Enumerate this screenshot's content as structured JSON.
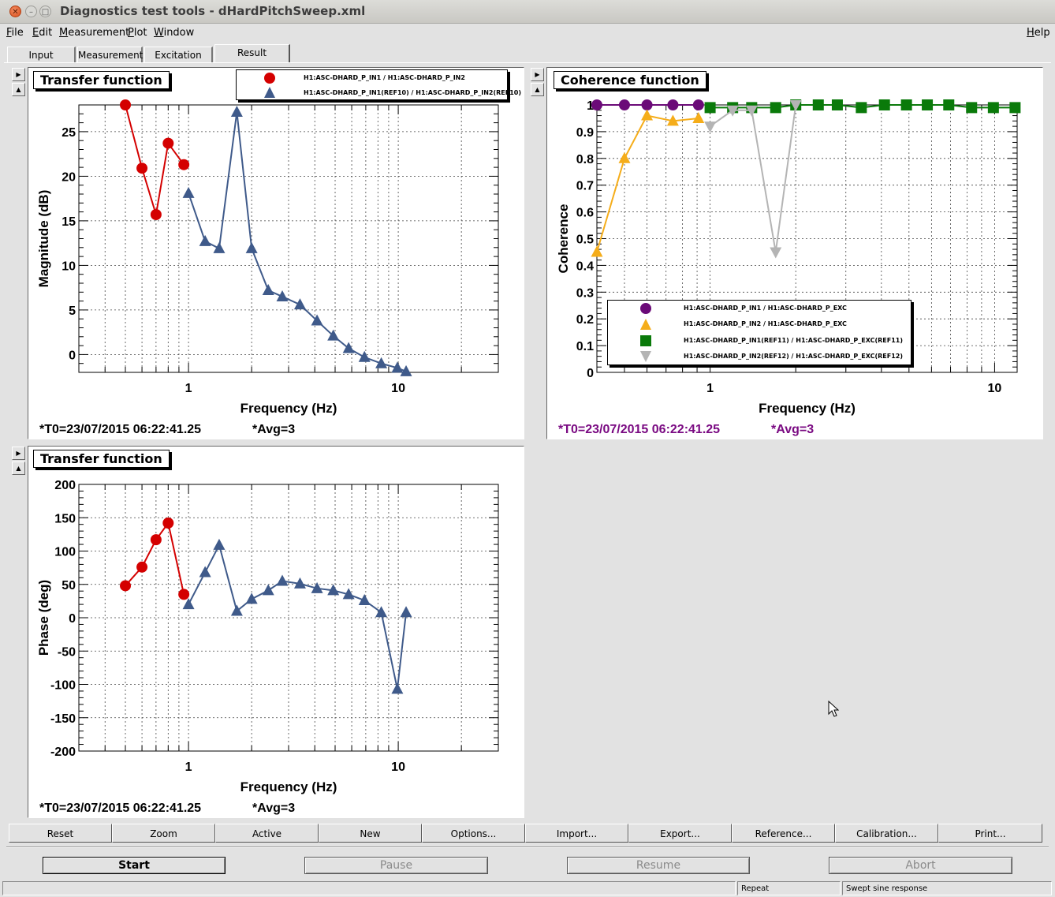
{
  "window": {
    "title": "Diagnostics test tools - dHardPitchSweep.xml",
    "controls": [
      "close-icon",
      "minimize-icon",
      "maximize-icon"
    ]
  },
  "menubar": {
    "items": [
      {
        "label": "File",
        "u": "F",
        "rest": "ile"
      },
      {
        "label": "Edit",
        "u": "E",
        "rest": "dit"
      },
      {
        "label": "Measurement",
        "u": "M",
        "rest": "easurement"
      },
      {
        "label": "Plot",
        "u": "P",
        "rest": "lot"
      },
      {
        "label": "Window",
        "u": "W",
        "rest": "indow"
      }
    ],
    "help": {
      "u": "H",
      "rest": "elp"
    }
  },
  "tabs": [
    {
      "label": "Input"
    },
    {
      "label": "Measurement"
    },
    {
      "label": "Excitation"
    },
    {
      "label": "Result",
      "active": true
    }
  ],
  "pads": {
    "tf_mag": {
      "title": "Transfer function",
      "legend": [
        {
          "label": "H1:ASC-DHARD_P_IN1 / H1:ASC-DHARD_P_IN2",
          "marker": "circle",
          "color": "#d40000"
        },
        {
          "label": "H1:ASC-DHARD_P_IN1(REF10) / H1:ASC-DHARD_P_IN2(REF10)",
          "marker": "triangle-up",
          "color": "#3f5a8a"
        }
      ],
      "t0": "*T0=23/07/2015 06:22:41.25",
      "avg": "*Avg=3",
      "info_color": "#d40000"
    },
    "coherence": {
      "title": "Coherence function",
      "legend": [
        {
          "label": "H1:ASC-DHARD_P_IN1 / H1:ASC-DHARD_P_EXC",
          "marker": "circle",
          "color": "#6b0a78"
        },
        {
          "label": "H1:ASC-DHARD_P_IN2 / H1:ASC-DHARD_P_EXC",
          "marker": "triangle-up",
          "color": "#f5ad1a"
        },
        {
          "label": "H1:ASC-DHARD_P_IN1(REF11) / H1:ASC-DHARD_P_EXC(REF11)",
          "marker": "square",
          "color": "#0a7a0a"
        },
        {
          "label": "H1:ASC-DHARD_P_IN2(REF12) / H1:ASC-DHARD_P_EXC(REF12)",
          "marker": "triangle-down",
          "color": "#b4b4b4"
        }
      ],
      "t0": "*T0=23/07/2015 06:22:41.25",
      "avg": "*Avg=3",
      "info_color": "#7a0a82"
    },
    "tf_phase": {
      "title": "Transfer function",
      "t0": "*T0=23/07/2015 06:22:41.25",
      "avg": "*Avg=3",
      "info_color": "#d40000"
    }
  },
  "chart_data": [
    {
      "type": "line",
      "title": "Transfer function",
      "xlabel": "Frequency (Hz)",
      "ylabel": "Magnitude (dB)",
      "xscale": "log",
      "xlim": [
        0.3,
        30
      ],
      "ylim": [
        -2,
        28
      ],
      "grid": true,
      "legend_position": "top-center",
      "x_ticks": [
        {
          "v": 1,
          "label": "1"
        },
        {
          "v": 10,
          "label": "10"
        }
      ],
      "y_ticks": [
        {
          "v": 0,
          "label": "0"
        },
        {
          "v": 5,
          "label": "5"
        },
        {
          "v": 10,
          "label": "10"
        },
        {
          "v": 15,
          "label": "15"
        },
        {
          "v": 20,
          "label": "20"
        },
        {
          "v": 25,
          "label": "25"
        }
      ],
      "series": [
        {
          "name": "H1:ASC-DHARD_P_IN1 / H1:ASC-DHARD_P_IN2",
          "color": "#d40000",
          "marker": "circle",
          "x": [
            0.5,
            0.6,
            0.7,
            0.8,
            0.95
          ],
          "y": [
            28.0,
            20.9,
            15.7,
            23.7,
            21.3
          ]
        },
        {
          "name": "H1:ASC-DHARD_P_IN1(REF10) / H1:ASC-DHARD_P_IN2(REF10)",
          "color": "#3f5a8a",
          "marker": "triangle-up",
          "x": [
            1.0,
            1.2,
            1.4,
            1.7,
            2.0,
            2.4,
            2.8,
            3.4,
            4.1,
            4.9,
            5.8,
            6.9,
            8.3,
            9.9,
            10.9
          ],
          "y": [
            18.1,
            12.7,
            11.9,
            27.2,
            11.9,
            7.2,
            6.5,
            5.6,
            3.8,
            2.1,
            0.7,
            -0.3,
            -1.0,
            -1.5,
            -1.9
          ]
        }
      ]
    },
    {
      "type": "line",
      "title": "Coherence function",
      "xlabel": "Frequency (Hz)",
      "ylabel": "Coherence",
      "xscale": "log",
      "xlim": [
        0.4,
        12
      ],
      "ylim": [
        0,
        1
      ],
      "grid": true,
      "legend_position": "bottom-left",
      "x_ticks": [
        {
          "v": 1,
          "label": "1"
        },
        {
          "v": 10,
          "label": "10"
        }
      ],
      "y_ticks": [
        {
          "v": 0,
          "label": "0"
        },
        {
          "v": 0.1,
          "label": "0.1"
        },
        {
          "v": 0.2,
          "label": "0.2"
        },
        {
          "v": 0.3,
          "label": "0.3"
        },
        {
          "v": 0.4,
          "label": "0.4"
        },
        {
          "v": 0.5,
          "label": "0.5"
        },
        {
          "v": 0.6,
          "label": "0.6"
        },
        {
          "v": 0.7,
          "label": "0.7"
        },
        {
          "v": 0.8,
          "label": "0.8"
        },
        {
          "v": 0.9,
          "label": "0.9"
        },
        {
          "v": 1,
          "label": "1"
        }
      ],
      "series": [
        {
          "name": "H1:ASC-DHARD_P_IN1 / H1:ASC-DHARD_P_EXC",
          "color": "#6b0a78",
          "marker": "circle",
          "x": [
            0.4,
            0.5,
            0.6,
            0.74,
            0.91
          ],
          "y": [
            1.0,
            1.0,
            1.0,
            1.0,
            1.0
          ]
        },
        {
          "name": "H1:ASC-DHARD_P_IN2 / H1:ASC-DHARD_P_EXC",
          "color": "#f5ad1a",
          "marker": "triangle-up",
          "x": [
            0.4,
            0.5,
            0.6,
            0.74,
            0.91
          ],
          "y": [
            0.45,
            0.8,
            0.96,
            0.94,
            0.95
          ]
        },
        {
          "name": "H1:ASC-DHARD_P_IN1(REF11) / H1:ASC-DHARD_P_EXC(REF11)",
          "color": "#0a7a0a",
          "marker": "square",
          "x": [
            1.0,
            1.2,
            1.4,
            1.7,
            2.0,
            2.4,
            2.8,
            3.4,
            4.1,
            4.9,
            5.8,
            6.9,
            8.3,
            9.9,
            11.8
          ],
          "y": [
            0.99,
            0.99,
            0.99,
            0.99,
            1.0,
            1.0,
            1.0,
            0.99,
            1.0,
            1.0,
            1.0,
            1.0,
            0.99,
            0.99,
            0.99
          ]
        },
        {
          "name": "H1:ASC-DHARD_P_IN2(REF12) / H1:ASC-DHARD_P_EXC(REF12)",
          "color": "#b4b4b4",
          "marker": "triangle-down",
          "x": [
            1.0,
            1.2,
            1.4,
            1.7,
            2.0
          ],
          "y": [
            0.92,
            0.98,
            0.98,
            0.45,
            1.0
          ]
        }
      ]
    },
    {
      "type": "line",
      "title": "Transfer function",
      "xlabel": "Frequency (Hz)",
      "ylabel": "Phase (deg)",
      "xscale": "log",
      "xlim": [
        0.3,
        30
      ],
      "ylim": [
        -200,
        200
      ],
      "grid": true,
      "x_ticks": [
        {
          "v": 1,
          "label": "1"
        },
        {
          "v": 10,
          "label": "10"
        }
      ],
      "y_ticks": [
        {
          "v": -200,
          "label": "-200"
        },
        {
          "v": -150,
          "label": "-150"
        },
        {
          "v": -100,
          "label": "-100"
        },
        {
          "v": -50,
          "label": "-50"
        },
        {
          "v": 0,
          "label": "0"
        },
        {
          "v": 50,
          "label": "50"
        },
        {
          "v": 100,
          "label": "100"
        },
        {
          "v": 150,
          "label": "150"
        },
        {
          "v": 200,
          "label": "200"
        }
      ],
      "series": [
        {
          "name": "H1:ASC-DHARD_P_IN1 / H1:ASC-DHARD_P_IN2",
          "color": "#d40000",
          "marker": "circle",
          "x": [
            0.5,
            0.6,
            0.7,
            0.8,
            0.95
          ],
          "y": [
            48,
            76,
            117,
            142,
            35
          ]
        },
        {
          "name": "H1:ASC-DHARD_P_IN1(REF10) / H1:ASC-DHARD_P_IN2(REF10)",
          "color": "#3f5a8a",
          "marker": "triangle-up",
          "x": [
            1.0,
            1.2,
            1.4,
            1.7,
            2.0,
            2.4,
            2.8,
            3.4,
            4.1,
            4.9,
            5.8,
            6.9,
            8.3,
            9.9,
            10.9
          ],
          "y": [
            20,
            68,
            109,
            10,
            28,
            41,
            55,
            51,
            44,
            41,
            35,
            26,
            8,
            -107,
            8
          ]
        }
      ]
    }
  ],
  "toolbar": {
    "buttons": [
      "Reset",
      "Zoom",
      "Active",
      "New",
      "Options...",
      "Import...",
      "Export...",
      "Reference...",
      "Calibration...",
      "Print..."
    ]
  },
  "controls": {
    "start": "Start",
    "pause": "Pause",
    "resume": "Resume",
    "abort": "Abort"
  },
  "status": {
    "left": "",
    "repeat": "Repeat",
    "mode": "Swept sine response"
  },
  "cursor_icon": "arrow-cursor-icon"
}
